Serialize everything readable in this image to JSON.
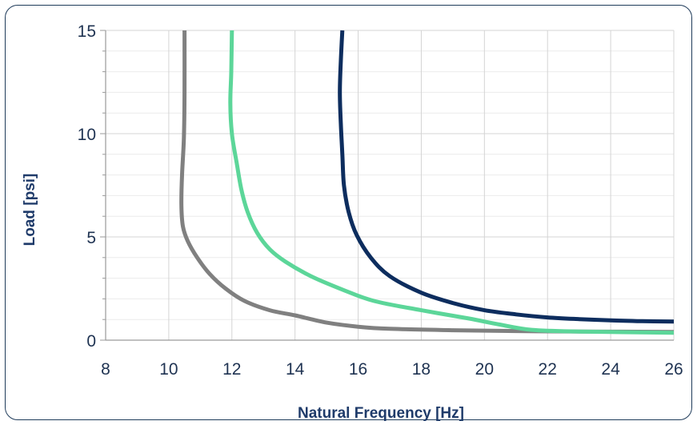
{
  "chart_data": {
    "type": "line",
    "title": "",
    "xlabel": "Natural Frequency [Hz]",
    "ylabel": "Load [psi]",
    "xlim": [
      8,
      26
    ],
    "ylim": [
      0,
      15
    ],
    "x_ticks": [
      8,
      10,
      12,
      14,
      16,
      18,
      20,
      22,
      24,
      26
    ],
    "y_ticks": [
      0,
      5,
      10,
      15
    ],
    "x_minor_step": 2,
    "y_minor_step": 1,
    "grid": true,
    "series": [
      {
        "color": "#808080",
        "points": [
          [
            10.5,
            15
          ],
          [
            10.5,
            12
          ],
          [
            10.48,
            9.8
          ],
          [
            10.42,
            8.0
          ],
          [
            10.4,
            6.5
          ],
          [
            10.45,
            5.5
          ],
          [
            10.6,
            4.8
          ],
          [
            10.9,
            4.0
          ],
          [
            11.3,
            3.2
          ],
          [
            11.8,
            2.5
          ],
          [
            12.4,
            1.9
          ],
          [
            13.2,
            1.45
          ],
          [
            14.0,
            1.2
          ],
          [
            15.0,
            0.85
          ],
          [
            16.0,
            0.65
          ],
          [
            17.0,
            0.55
          ],
          [
            19.0,
            0.48
          ],
          [
            21.0,
            0.44
          ],
          [
            23.0,
            0.42
          ],
          [
            26.0,
            0.4
          ]
        ]
      },
      {
        "color": "#5cd699",
        "points": [
          [
            12.0,
            15
          ],
          [
            11.98,
            13.0
          ],
          [
            11.95,
            11.5
          ],
          [
            12.0,
            10.0
          ],
          [
            12.15,
            8.6
          ],
          [
            12.3,
            7.3
          ],
          [
            12.5,
            6.2
          ],
          [
            12.8,
            5.2
          ],
          [
            13.2,
            4.4
          ],
          [
            13.7,
            3.8
          ],
          [
            14.5,
            3.1
          ],
          [
            15.5,
            2.45
          ],
          [
            16.5,
            1.9
          ],
          [
            18.0,
            1.45
          ],
          [
            19.5,
            1.05
          ],
          [
            20.5,
            0.75
          ],
          [
            21.5,
            0.5
          ],
          [
            23.0,
            0.42
          ],
          [
            26.0,
            0.36
          ]
        ]
      },
      {
        "color": "#0d2d5e",
        "points": [
          [
            15.5,
            15
          ],
          [
            15.45,
            13.5
          ],
          [
            15.42,
            12.0
          ],
          [
            15.45,
            10.5
          ],
          [
            15.5,
            9.0
          ],
          [
            15.55,
            7.5
          ],
          [
            15.7,
            6.2
          ],
          [
            15.95,
            5.1
          ],
          [
            16.4,
            4.0
          ],
          [
            17.0,
            3.1
          ],
          [
            18.0,
            2.3
          ],
          [
            19.0,
            1.8
          ],
          [
            20.0,
            1.45
          ],
          [
            21.0,
            1.25
          ],
          [
            22.0,
            1.1
          ],
          [
            23.0,
            1.02
          ],
          [
            24.0,
            0.96
          ],
          [
            25.0,
            0.92
          ],
          [
            26.0,
            0.9
          ]
        ]
      }
    ]
  }
}
